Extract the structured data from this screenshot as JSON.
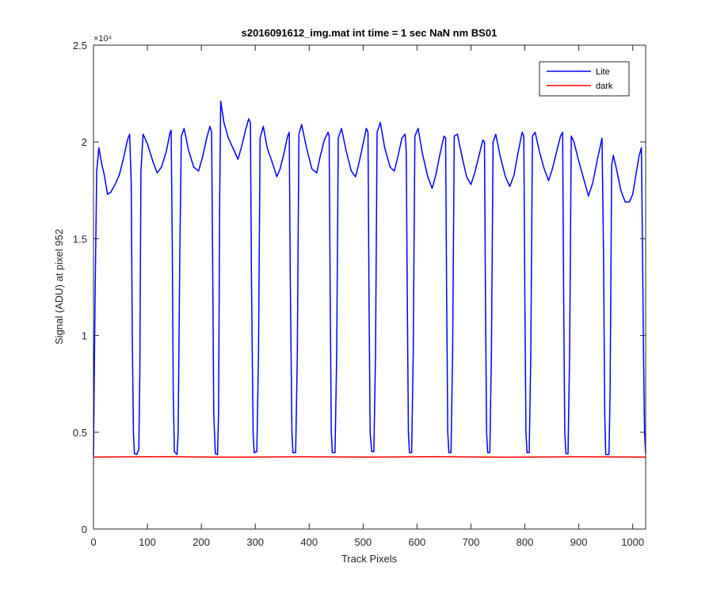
{
  "chart_data": {
    "type": "line",
    "title": "s2016091612_img.mat int time = 1 sec  NaN nm BS01",
    "xlabel": "Track Pixels",
    "ylabel": "Signal (ADU) at pixel 952",
    "xlim": [
      0,
      1024
    ],
    "ylim": [
      0,
      25000
    ],
    "x_ticks": [
      0,
      100,
      200,
      300,
      400,
      500,
      600,
      700,
      800,
      900,
      1000
    ],
    "x_tick_labels": [
      "0",
      "100",
      "200",
      "300",
      "400",
      "500",
      "600",
      "700",
      "800",
      "900",
      "1000"
    ],
    "y_ticks": [
      0,
      5000,
      10000,
      15000,
      20000,
      25000
    ],
    "y_tick_labels": [
      "0",
      "0.5",
      "1",
      "1.5",
      "2",
      "2.5"
    ],
    "y_exponent_label": "×10⁴",
    "grid": false,
    "legend": {
      "placement": "top-right",
      "entries": [
        "Lite",
        "dark"
      ]
    },
    "series": [
      {
        "name": "Lite",
        "color": "#0000ff",
        "points": [
          [
            0,
            3800
          ],
          [
            3,
            12000
          ],
          [
            6,
            18500
          ],
          [
            10,
            19700
          ],
          [
            15,
            18900
          ],
          [
            20,
            18300
          ],
          [
            26,
            17300
          ],
          [
            32,
            17400
          ],
          [
            40,
            17800
          ],
          [
            48,
            18300
          ],
          [
            56,
            19200
          ],
          [
            63,
            20100
          ],
          [
            67,
            20400
          ],
          [
            70,
            18000
          ],
          [
            72,
            10000
          ],
          [
            74,
            5000
          ],
          [
            76,
            3900
          ],
          [
            80,
            3850
          ],
          [
            84,
            4100
          ],
          [
            86,
            8000
          ],
          [
            88,
            18500
          ],
          [
            92,
            20400
          ],
          [
            100,
            19900
          ],
          [
            110,
            19000
          ],
          [
            118,
            18400
          ],
          [
            126,
            18700
          ],
          [
            135,
            19500
          ],
          [
            142,
            20500
          ],
          [
            144,
            20600
          ],
          [
            146,
            15000
          ],
          [
            148,
            7000
          ],
          [
            150,
            4000
          ],
          [
            155,
            3850
          ],
          [
            157,
            5000
          ],
          [
            160,
            14000
          ],
          [
            163,
            20300
          ],
          [
            168,
            20700
          ],
          [
            176,
            19600
          ],
          [
            186,
            18700
          ],
          [
            195,
            18500
          ],
          [
            203,
            19300
          ],
          [
            210,
            20200
          ],
          [
            216,
            20800
          ],
          [
            219,
            20500
          ],
          [
            221,
            14000
          ],
          [
            223,
            6000
          ],
          [
            226,
            3900
          ],
          [
            230,
            3850
          ],
          [
            232,
            6000
          ],
          [
            234,
            17000
          ],
          [
            236,
            22100
          ],
          [
            242,
            21000
          ],
          [
            250,
            20200
          ],
          [
            260,
            19600
          ],
          [
            268,
            19100
          ],
          [
            275,
            19800
          ],
          [
            282,
            20600
          ],
          [
            288,
            21200
          ],
          [
            291,
            21000
          ],
          [
            293,
            13000
          ],
          [
            296,
            5000
          ],
          [
            298,
            3950
          ],
          [
            303,
            4000
          ],
          [
            306,
            9000
          ],
          [
            309,
            20200
          ],
          [
            315,
            20800
          ],
          [
            322,
            19700
          ],
          [
            332,
            18900
          ],
          [
            340,
            18200
          ],
          [
            346,
            18600
          ],
          [
            354,
            19500
          ],
          [
            360,
            20300
          ],
          [
            363,
            20500
          ],
          [
            365,
            13000
          ],
          [
            368,
            5000
          ],
          [
            370,
            3950
          ],
          [
            375,
            3950
          ],
          [
            378,
            9000
          ],
          [
            381,
            20400
          ],
          [
            386,
            20900
          ],
          [
            395,
            19700
          ],
          [
            405,
            18600
          ],
          [
            414,
            18400
          ],
          [
            420,
            19200
          ],
          [
            428,
            20100
          ],
          [
            435,
            20500
          ],
          [
            437,
            20300
          ],
          [
            439,
            12000
          ],
          [
            441,
            5000
          ],
          [
            443,
            3950
          ],
          [
            448,
            3950
          ],
          [
            451,
            9000
          ],
          [
            454,
            20200
          ],
          [
            460,
            20700
          ],
          [
            468,
            19600
          ],
          [
            478,
            18500
          ],
          [
            486,
            18200
          ],
          [
            493,
            19000
          ],
          [
            500,
            19900
          ],
          [
            506,
            20700
          ],
          [
            509,
            20500
          ],
          [
            511,
            12000
          ],
          [
            513,
            5000
          ],
          [
            516,
            4000
          ],
          [
            520,
            4000
          ],
          [
            523,
            9000
          ],
          [
            526,
            20500
          ],
          [
            532,
            21000
          ],
          [
            540,
            19700
          ],
          [
            550,
            18700
          ],
          [
            558,
            18500
          ],
          [
            565,
            19300
          ],
          [
            572,
            20200
          ],
          [
            578,
            20400
          ],
          [
            580,
            19500
          ],
          [
            582,
            12000
          ],
          [
            584,
            5000
          ],
          [
            586,
            3950
          ],
          [
            590,
            3950
          ],
          [
            593,
            9000
          ],
          [
            596,
            20300
          ],
          [
            602,
            20700
          ],
          [
            610,
            19400
          ],
          [
            620,
            18200
          ],
          [
            628,
            17600
          ],
          [
            635,
            18300
          ],
          [
            642,
            19300
          ],
          [
            650,
            20300
          ],
          [
            653,
            20200
          ],
          [
            655,
            12000
          ],
          [
            657,
            5000
          ],
          [
            659,
            3950
          ],
          [
            663,
            3950
          ],
          [
            666,
            9000
          ],
          [
            669,
            20300
          ],
          [
            675,
            20400
          ],
          [
            683,
            19300
          ],
          [
            692,
            18200
          ],
          [
            700,
            17800
          ],
          [
            707,
            18400
          ],
          [
            715,
            19300
          ],
          [
            722,
            20100
          ],
          [
            725,
            20000
          ],
          [
            727,
            12000
          ],
          [
            729,
            5000
          ],
          [
            731,
            3950
          ],
          [
            735,
            3950
          ],
          [
            738,
            9000
          ],
          [
            741,
            20000
          ],
          [
            746,
            20400
          ],
          [
            754,
            19300
          ],
          [
            764,
            18200
          ],
          [
            772,
            17700
          ],
          [
            780,
            18300
          ],
          [
            787,
            19400
          ],
          [
            795,
            20500
          ],
          [
            798,
            20300
          ],
          [
            800,
            12000
          ],
          [
            802,
            5000
          ],
          [
            804,
            3950
          ],
          [
            808,
            3950
          ],
          [
            811,
            9000
          ],
          [
            814,
            20300
          ],
          [
            819,
            20500
          ],
          [
            827,
            19500
          ],
          [
            836,
            18600
          ],
          [
            844,
            18000
          ],
          [
            851,
            18600
          ],
          [
            858,
            19400
          ],
          [
            866,
            20300
          ],
          [
            870,
            20500
          ],
          [
            872,
            12000
          ],
          [
            874,
            5000
          ],
          [
            876,
            3900
          ],
          [
            880,
            3900
          ],
          [
            883,
            9000
          ],
          [
            886,
            20300
          ],
          [
            891,
            20000
          ],
          [
            900,
            19000
          ],
          [
            910,
            18000
          ],
          [
            918,
            17200
          ],
          [
            926,
            17900
          ],
          [
            933,
            18900
          ],
          [
            940,
            19800
          ],
          [
            943,
            20200
          ],
          [
            946,
            14000
          ],
          [
            948,
            6000
          ],
          [
            950,
            3850
          ],
          [
            956,
            3850
          ],
          [
            958,
            7000
          ],
          [
            961,
            18800
          ],
          [
            964,
            19300
          ],
          [
            970,
            18600
          ],
          [
            978,
            17500
          ],
          [
            986,
            16900
          ],
          [
            994,
            16900
          ],
          [
            1000,
            17300
          ],
          [
            1006,
            18300
          ],
          [
            1012,
            19300
          ],
          [
            1016,
            19700
          ],
          [
            1018,
            15000
          ],
          [
            1020,
            9000
          ],
          [
            1022,
            5000
          ],
          [
            1024,
            3900
          ]
        ]
      },
      {
        "name": "dark",
        "color": "#ff0000",
        "points": [
          [
            0,
            3720
          ],
          [
            128,
            3740
          ],
          [
            256,
            3710
          ],
          [
            384,
            3730
          ],
          [
            512,
            3720
          ],
          [
            640,
            3740
          ],
          [
            768,
            3710
          ],
          [
            896,
            3730
          ],
          [
            1024,
            3720
          ]
        ]
      }
    ]
  }
}
